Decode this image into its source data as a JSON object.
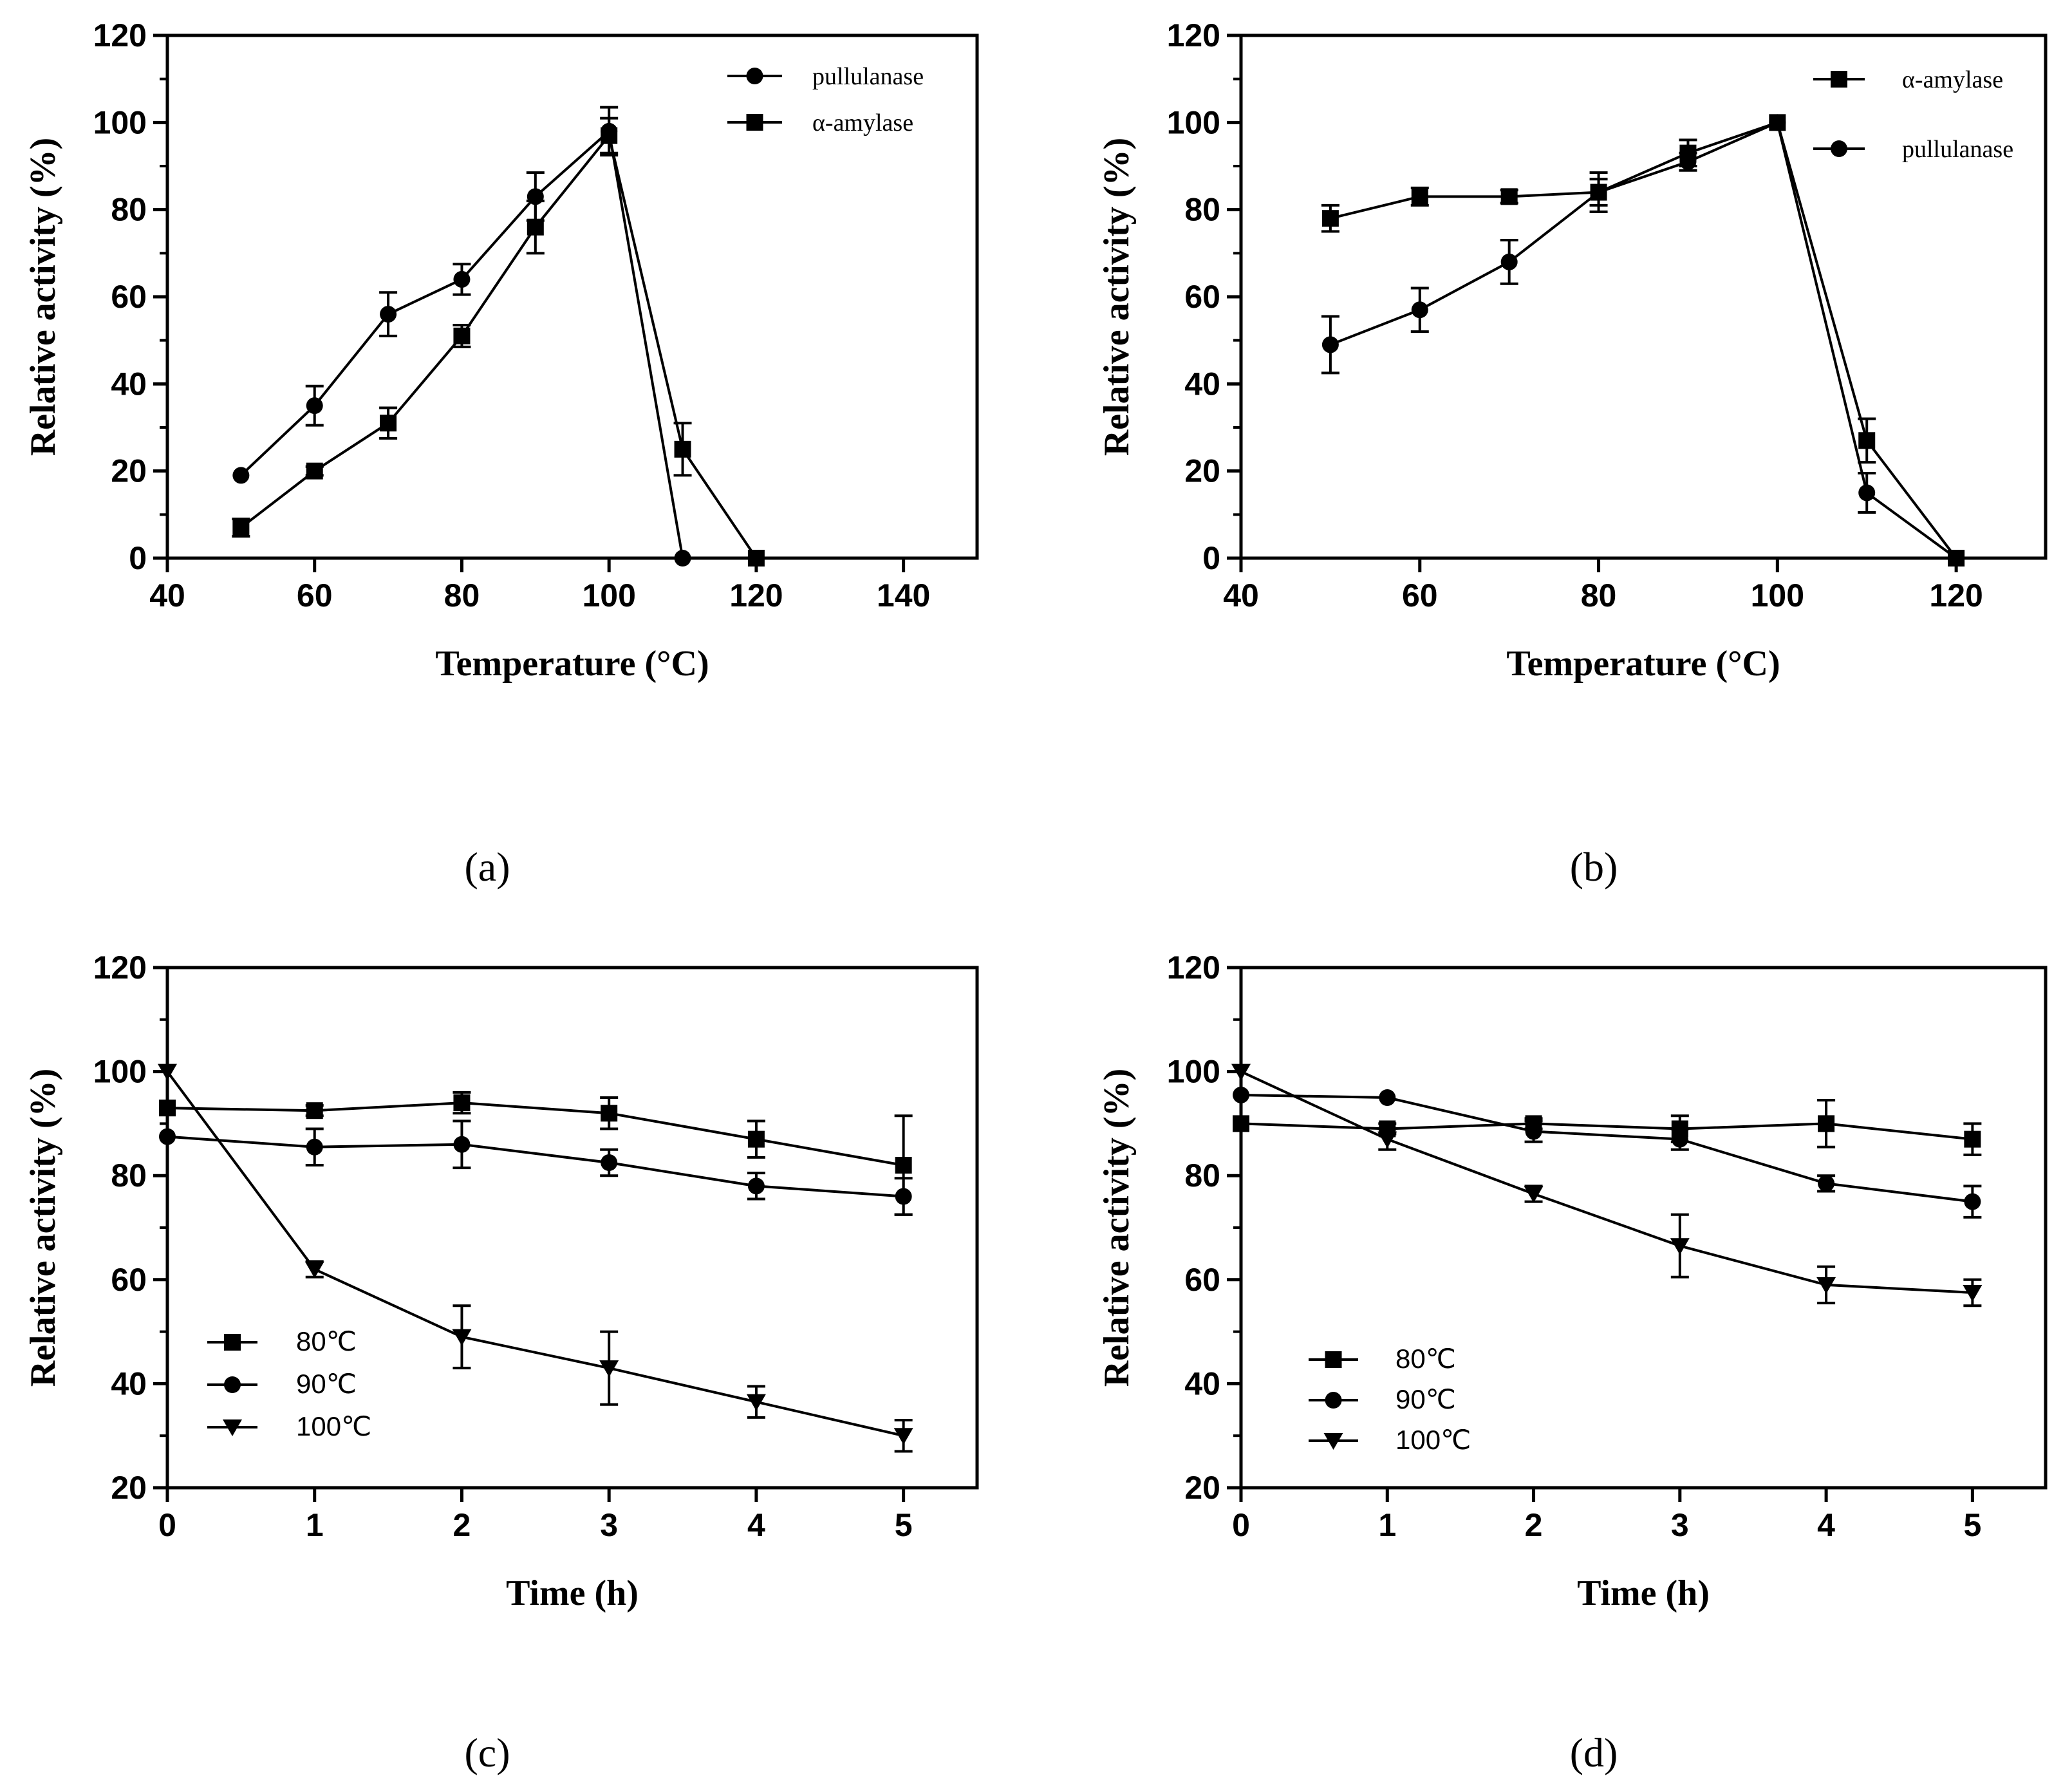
{
  "figure": {
    "panels": [
      "a",
      "b",
      "c",
      "d"
    ]
  },
  "chart_data": [
    {
      "panel_label": "(a)",
      "type": "line",
      "xlabel": "Temperature (°C)",
      "ylabel": "Relative activity (%)",
      "xlim": [
        40,
        150
      ],
      "ylim": [
        0,
        120
      ],
      "xticks": [
        40,
        60,
        80,
        100,
        120,
        140
      ],
      "yticks": [
        0,
        20,
        40,
        60,
        80,
        100,
        120
      ],
      "legend_position": "top-right",
      "series": [
        {
          "name": "pullulanase",
          "marker": "circle",
          "x": [
            50,
            60,
            70,
            80,
            90,
            100,
            110
          ],
          "y": [
            19,
            35,
            56,
            64,
            83,
            98,
            0
          ],
          "err": [
            0,
            4.5,
            5,
            3.5,
            5.5,
            5.5,
            0
          ]
        },
        {
          "name": "α-amylase",
          "marker": "square",
          "x": [
            50,
            60,
            70,
            80,
            90,
            100,
            110,
            120
          ],
          "y": [
            7,
            20,
            31,
            51,
            76,
            97,
            25,
            0
          ],
          "err": [
            2,
            1,
            3.5,
            2.5,
            6,
            4,
            6,
            0
          ]
        }
      ]
    },
    {
      "panel_label": "(b)",
      "type": "line",
      "xlabel": "Temperature (°C)",
      "ylabel": "Relative activity (%)",
      "xlim": [
        40,
        130
      ],
      "ylim": [
        0,
        120
      ],
      "xticks": [
        40,
        60,
        80,
        100,
        120
      ],
      "yticks": [
        0,
        20,
        40,
        60,
        80,
        100,
        120
      ],
      "legend_position": "top-right",
      "series": [
        {
          "name": "α-amylase",
          "marker": "square",
          "x": [
            50,
            60,
            70,
            80,
            90,
            100,
            110,
            120
          ],
          "y": [
            78,
            83,
            83,
            84,
            93,
            100,
            27,
            0
          ],
          "err": [
            3,
            2,
            1.5,
            3,
            3,
            0,
            5,
            0
          ]
        },
        {
          "name": "pullulanase",
          "marker": "circle",
          "x": [
            50,
            60,
            70,
            80,
            90,
            100,
            110,
            120
          ],
          "y": [
            49,
            57,
            68,
            84,
            91,
            100,
            15,
            0
          ],
          "err": [
            6.5,
            5,
            5,
            4.5,
            2,
            0,
            4.5,
            0
          ]
        }
      ]
    },
    {
      "panel_label": "(c)",
      "type": "line",
      "xlabel": "Time (h)",
      "ylabel": "Relative activity (%)",
      "xlim": [
        0,
        5.5
      ],
      "ylim": [
        20,
        120
      ],
      "xticks": [
        0,
        1,
        2,
        3,
        4,
        5
      ],
      "yticks": [
        20,
        40,
        60,
        80,
        100,
        120
      ],
      "legend_position": "bottom-left",
      "series": [
        {
          "name": "80℃",
          "marker": "square",
          "x": [
            0,
            1,
            2,
            3,
            4,
            5
          ],
          "y": [
            93,
            92.5,
            94,
            92,
            87,
            82
          ],
          "err": [
            0,
            1,
            2,
            3,
            3.5,
            9.5
          ]
        },
        {
          "name": "90℃",
          "marker": "circle",
          "x": [
            0,
            1,
            2,
            3,
            4,
            5
          ],
          "y": [
            87.5,
            85.5,
            86,
            82.5,
            78,
            76
          ],
          "err": [
            0,
            3.5,
            4.5,
            2.5,
            2.5,
            3.5
          ]
        },
        {
          "name": "100℃",
          "marker": "triangle-down",
          "x": [
            0,
            1,
            2,
            3,
            4,
            5
          ],
          "y": [
            100,
            62,
            49,
            43,
            36.5,
            30
          ],
          "err": [
            0,
            1.5,
            6,
            7,
            3,
            3
          ]
        }
      ]
    },
    {
      "panel_label": "(d)",
      "type": "line",
      "xlabel": "Time (h)",
      "ylabel": "Relative activity (%)",
      "xlim": [
        0,
        5.5
      ],
      "ylim": [
        20,
        120
      ],
      "xticks": [
        0,
        1,
        2,
        3,
        4,
        5
      ],
      "yticks": [
        20,
        40,
        60,
        80,
        100,
        120
      ],
      "legend_position": "bottom-left",
      "series": [
        {
          "name": "80℃",
          "marker": "square",
          "x": [
            0,
            1,
            2,
            3,
            4,
            5
          ],
          "y": [
            90,
            89,
            90,
            89,
            90,
            87
          ],
          "err": [
            0,
            1,
            1,
            2.5,
            4.5,
            3
          ]
        },
        {
          "name": "90℃",
          "marker": "circle",
          "x": [
            0,
            1,
            2,
            3,
            4,
            5
          ],
          "y": [
            95.5,
            95,
            88.5,
            87,
            78.5,
            75
          ],
          "err": [
            0,
            0,
            2,
            2,
            1.5,
            3
          ]
        },
        {
          "name": "100℃",
          "marker": "triangle-down",
          "x": [
            0,
            1,
            2,
            3,
            4,
            5
          ],
          "y": [
            100,
            87,
            76.5,
            66.5,
            59,
            57.5
          ],
          "err": [
            0,
            2,
            1.5,
            6,
            3.5,
            2.5
          ]
        }
      ]
    }
  ]
}
